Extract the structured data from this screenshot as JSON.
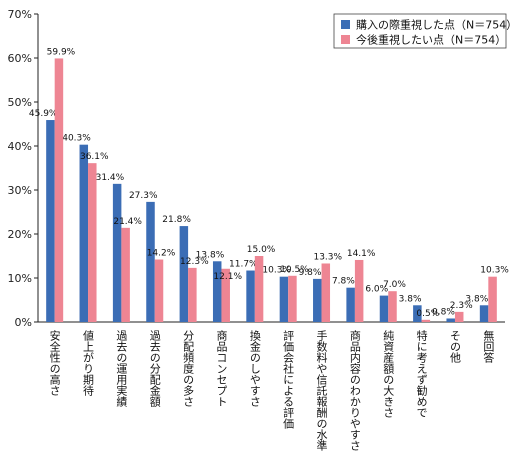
{
  "chart_data": {
    "type": "bar",
    "categories": [
      "安全性の高さ",
      "値上がり期待",
      "過去の運用実績",
      "過去の分配金額",
      "分配頻度の多さ",
      "商品コンセプト",
      "換金のしやすさ",
      "評価会社による評価",
      "手数料や信託報酬の水準",
      "商品内容のわかりやすさ",
      "純資産額の大きさ",
      "特に考えず勧めで",
      "その他",
      "無回答"
    ],
    "series": [
      {
        "name": "購入の際重視した点（N＝754）",
        "color": "#3b6db5",
        "values": [
          45.9,
          40.3,
          31.4,
          27.3,
          21.8,
          13.8,
          11.7,
          10.3,
          9.8,
          7.8,
          6.0,
          3.8,
          0.8,
          3.8
        ],
        "labels": [
          "45.9%",
          "40.3%",
          "31.4%",
          "27.3%",
          "21.8%",
          "13.8%",
          "11.7%",
          "10.3%",
          "9.8%",
          "7.8%",
          "6.0%",
          "3.8%",
          "0.8%",
          "3.8%"
        ]
      },
      {
        "name": "今後重視したい点（N＝754）",
        "color": "#ee8593",
        "values": [
          59.9,
          36.1,
          21.4,
          14.2,
          12.3,
          12.1,
          15.0,
          10.5,
          13.3,
          14.1,
          7.0,
          0.5,
          2.3,
          10.3
        ],
        "labels": [
          "59.9%",
          "36.1%",
          "21.4%",
          "14.2%",
          "12.3%",
          "12.1%",
          "15.0%",
          "10.5%",
          "13.3%",
          "14.1%",
          "7.0%",
          "0.5%",
          "2.3%",
          "10.3%"
        ]
      }
    ],
    "yticks": [
      "0%",
      "10%",
      "20%",
      "30%",
      "40%",
      "50%",
      "60%",
      "70%"
    ],
    "ylim": [
      0,
      70
    ],
    "legend": "top-right",
    "grid": false
  }
}
